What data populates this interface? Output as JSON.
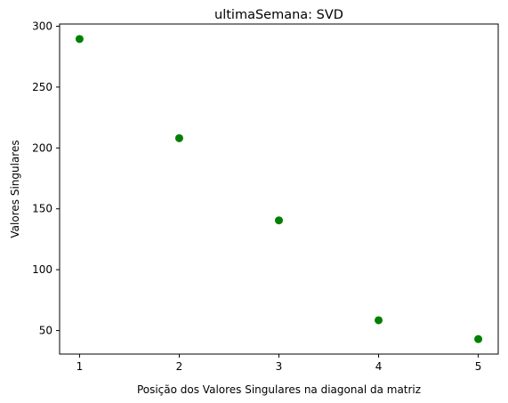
{
  "chart_data": {
    "type": "scatter",
    "title": "ultimaSemana: SVD",
    "xlabel": "Posição dos Valores Singulares na diagonal da matriz",
    "ylabel": "Valores Singulares",
    "x": [
      1,
      2,
      3,
      4,
      5
    ],
    "y": [
      289.5,
      208,
      140.5,
      58.5,
      43
    ],
    "xlim": [
      0.8,
      5.2
    ],
    "ylim": [
      30.7,
      301.8
    ],
    "xticks": [
      "1",
      "2",
      "3",
      "4",
      "5"
    ],
    "yticks": [
      "50",
      "100",
      "150",
      "200",
      "250",
      "300"
    ],
    "ytick_values": [
      50,
      100,
      150,
      200,
      250,
      300
    ],
    "xtick_values": [
      1,
      2,
      3,
      4,
      5
    ],
    "marker_color": "#008000",
    "grid": false
  }
}
